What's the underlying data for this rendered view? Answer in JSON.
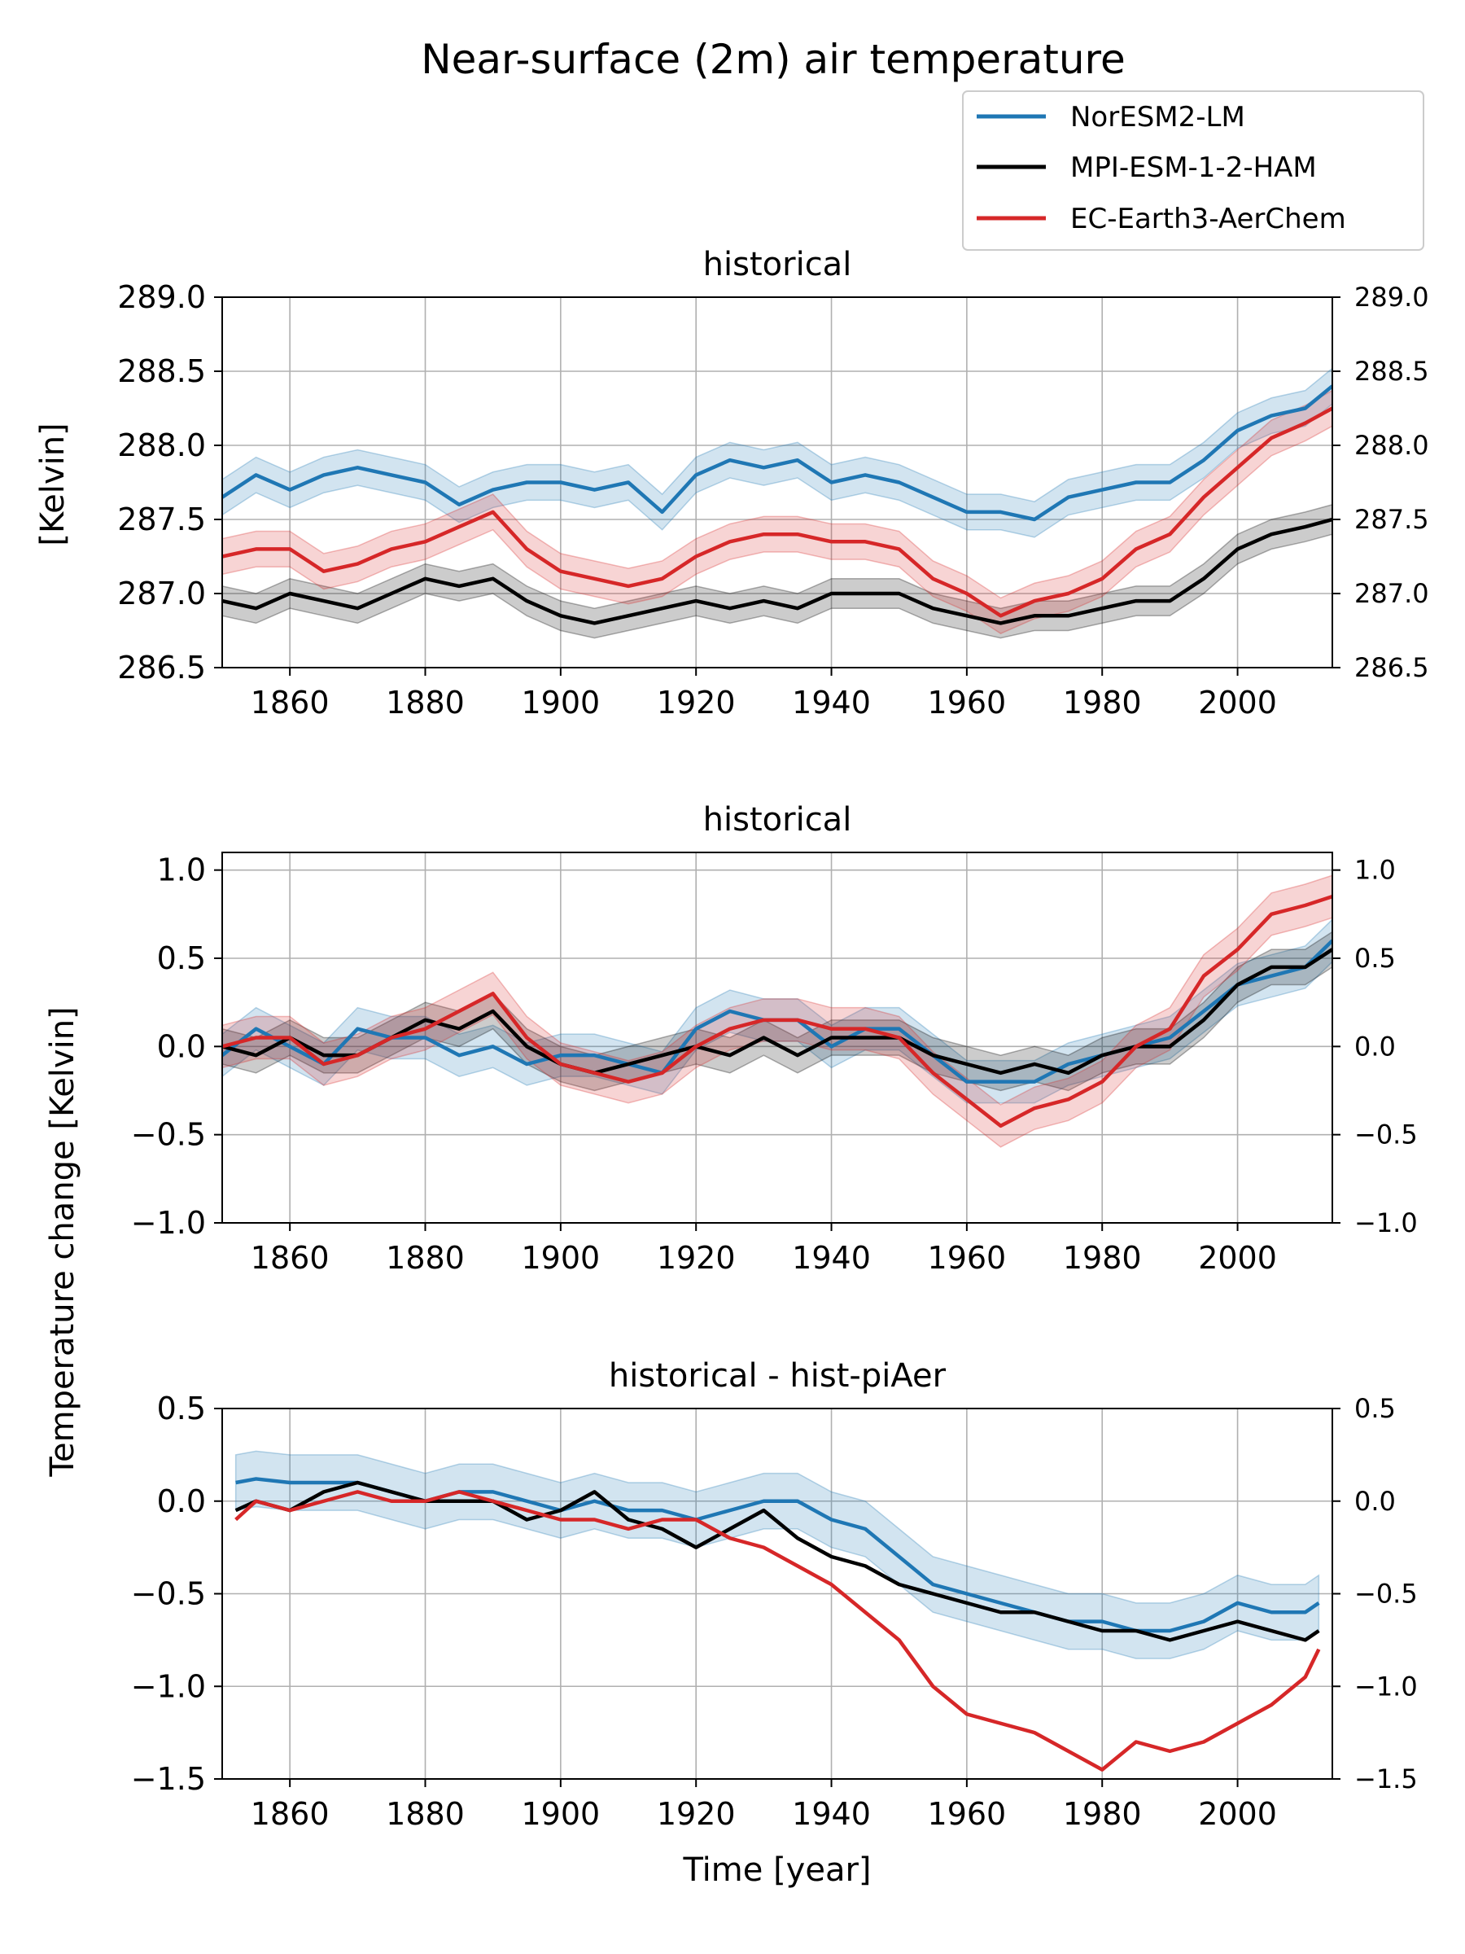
{
  "figure_title": "Near-surface (2m) air temperature",
  "colors": {
    "NorESM2-LM": "#1f77b4",
    "MPI-ESM-1-2-HAM": "#000000",
    "EC-Earth3-AerChem": "#d62728"
  },
  "chart_data": [
    {
      "type": "line",
      "title": "historical",
      "xlabel": "",
      "ylabel": "[Kelvin]",
      "xlim": [
        1850,
        2014
      ],
      "ylim": [
        286.5,
        289.0
      ],
      "xticks": [
        1860,
        1880,
        1900,
        1920,
        1940,
        1960,
        1980,
        2000
      ],
      "xtick_labels": [
        "1860",
        "1880",
        "1900",
        "1920",
        "1940",
        "1960",
        "1980",
        "2000"
      ],
      "yticks": [
        286.5,
        287.0,
        287.5,
        288.0,
        288.5,
        289.0
      ],
      "ytick_labels": [
        "286.5",
        "287.0",
        "287.5",
        "288.0",
        "288.5",
        "289.0"
      ],
      "grid": true,
      "legend": {
        "position": "above-right",
        "entries": [
          "NorESM2-LM",
          "MPI-ESM-1-2-HAM",
          "EC-Earth3-AerChem"
        ]
      },
      "series": [
        {
          "name": "NorESM2-LM",
          "x": [
            1850,
            1855,
            1860,
            1865,
            1870,
            1875,
            1880,
            1885,
            1890,
            1895,
            1900,
            1905,
            1910,
            1915,
            1920,
            1925,
            1930,
            1935,
            1940,
            1945,
            1950,
            1955,
            1960,
            1965,
            1970,
            1975,
            1980,
            1985,
            1990,
            1995,
            2000,
            2005,
            2010,
            2014
          ],
          "values": [
            287.65,
            287.8,
            287.7,
            287.8,
            287.85,
            287.8,
            287.75,
            287.6,
            287.7,
            287.75,
            287.75,
            287.7,
            287.75,
            287.55,
            287.8,
            287.9,
            287.85,
            287.9,
            287.75,
            287.8,
            287.75,
            287.65,
            287.55,
            287.55,
            287.5,
            287.65,
            287.7,
            287.75,
            287.75,
            287.9,
            288.1,
            288.2,
            288.25,
            288.4
          ],
          "band": 0.12
        },
        {
          "name": "MPI-ESM-1-2-HAM",
          "x": [
            1850,
            1855,
            1860,
            1865,
            1870,
            1875,
            1880,
            1885,
            1890,
            1895,
            1900,
            1905,
            1910,
            1915,
            1920,
            1925,
            1930,
            1935,
            1940,
            1945,
            1950,
            1955,
            1960,
            1965,
            1970,
            1975,
            1980,
            1985,
            1990,
            1995,
            2000,
            2005,
            2010,
            2014
          ],
          "values": [
            286.95,
            286.9,
            287.0,
            286.95,
            286.9,
            287.0,
            287.1,
            287.05,
            287.1,
            286.95,
            286.85,
            286.8,
            286.85,
            286.9,
            286.95,
            286.9,
            286.95,
            286.9,
            287.0,
            287.0,
            287.0,
            286.9,
            286.85,
            286.8,
            286.85,
            286.85,
            286.9,
            286.95,
            286.95,
            287.1,
            287.3,
            287.4,
            287.45,
            287.5
          ],
          "band": 0.1
        },
        {
          "name": "EC-Earth3-AerChem",
          "x": [
            1850,
            1855,
            1860,
            1865,
            1870,
            1875,
            1880,
            1885,
            1890,
            1895,
            1900,
            1905,
            1910,
            1915,
            1920,
            1925,
            1930,
            1935,
            1940,
            1945,
            1950,
            1955,
            1960,
            1965,
            1970,
            1975,
            1980,
            1985,
            1990,
            1995,
            2000,
            2005,
            2010,
            2014
          ],
          "values": [
            287.25,
            287.3,
            287.3,
            287.15,
            287.2,
            287.3,
            287.35,
            287.45,
            287.55,
            287.3,
            287.15,
            287.1,
            287.05,
            287.1,
            287.25,
            287.35,
            287.4,
            287.4,
            287.35,
            287.35,
            287.3,
            287.1,
            287.0,
            286.85,
            286.95,
            287.0,
            287.1,
            287.3,
            287.4,
            287.65,
            287.85,
            288.05,
            288.15,
            288.25
          ],
          "band": 0.12
        }
      ]
    },
    {
      "type": "line",
      "title": "historical",
      "xlabel": "",
      "ylabel": "Temperature change [Kelvin]",
      "xlim": [
        1850,
        2014
      ],
      "ylim": [
        -1.0,
        1.1
      ],
      "xticks": [
        1860,
        1880,
        1900,
        1920,
        1940,
        1960,
        1980,
        2000
      ],
      "xtick_labels": [
        "1860",
        "1880",
        "1900",
        "1920",
        "1940",
        "1960",
        "1980",
        "2000"
      ],
      "yticks": [
        -1.0,
        -0.5,
        0.0,
        0.5,
        1.0
      ],
      "ytick_labels": [
        "−1.0",
        "−0.5",
        "0.0",
        "0.5",
        "1.0"
      ],
      "grid": true,
      "series": [
        {
          "name": "NorESM2-LM",
          "x": [
            1850,
            1855,
            1860,
            1865,
            1870,
            1875,
            1880,
            1885,
            1890,
            1895,
            1900,
            1905,
            1910,
            1915,
            1920,
            1925,
            1930,
            1935,
            1940,
            1945,
            1950,
            1955,
            1960,
            1965,
            1970,
            1975,
            1980,
            1985,
            1990,
            1995,
            2000,
            2005,
            2010,
            2014
          ],
          "values": [
            -0.05,
            0.1,
            0.0,
            -0.1,
            0.1,
            0.05,
            0.05,
            -0.05,
            0.0,
            -0.1,
            -0.05,
            -0.05,
            -0.1,
            -0.15,
            0.1,
            0.2,
            0.15,
            0.15,
            0.0,
            0.1,
            0.1,
            -0.05,
            -0.2,
            -0.2,
            -0.2,
            -0.1,
            -0.05,
            0.0,
            0.05,
            0.2,
            0.35,
            0.4,
            0.45,
            0.6
          ],
          "band": 0.12
        },
        {
          "name": "MPI-ESM-1-2-HAM",
          "x": [
            1850,
            1855,
            1860,
            1865,
            1870,
            1875,
            1880,
            1885,
            1890,
            1895,
            1900,
            1905,
            1910,
            1915,
            1920,
            1925,
            1930,
            1935,
            1940,
            1945,
            1950,
            1955,
            1960,
            1965,
            1970,
            1975,
            1980,
            1985,
            1990,
            1995,
            2000,
            2005,
            2010,
            2014
          ],
          "values": [
            0.0,
            -0.05,
            0.05,
            -0.05,
            -0.05,
            0.05,
            0.15,
            0.1,
            0.2,
            0.0,
            -0.1,
            -0.15,
            -0.1,
            -0.05,
            0.0,
            -0.05,
            0.05,
            -0.05,
            0.05,
            0.05,
            0.05,
            -0.05,
            -0.1,
            -0.15,
            -0.1,
            -0.15,
            -0.05,
            0.0,
            0.0,
            0.15,
            0.35,
            0.45,
            0.45,
            0.55
          ],
          "band": 0.1
        },
        {
          "name": "EC-Earth3-AerChem",
          "x": [
            1850,
            1855,
            1860,
            1865,
            1870,
            1875,
            1880,
            1885,
            1890,
            1895,
            1900,
            1905,
            1910,
            1915,
            1920,
            1925,
            1930,
            1935,
            1940,
            1945,
            1950,
            1955,
            1960,
            1965,
            1970,
            1975,
            1980,
            1985,
            1990,
            1995,
            2000,
            2005,
            2010,
            2014
          ],
          "values": [
            0.0,
            0.05,
            0.05,
            -0.1,
            -0.05,
            0.05,
            0.1,
            0.2,
            0.3,
            0.05,
            -0.1,
            -0.15,
            -0.2,
            -0.15,
            0.0,
            0.1,
            0.15,
            0.15,
            0.1,
            0.1,
            0.05,
            -0.15,
            -0.3,
            -0.45,
            -0.35,
            -0.3,
            -0.2,
            0.0,
            0.1,
            0.4,
            0.55,
            0.75,
            0.8,
            0.85
          ],
          "band": 0.12
        }
      ]
    },
    {
      "type": "line",
      "title": "historical - hist-piAer",
      "xlabel": "Time [year]",
      "ylabel": "",
      "xlim": [
        1850,
        2014
      ],
      "ylim": [
        -1.5,
        0.5
      ],
      "xticks": [
        1860,
        1880,
        1900,
        1920,
        1940,
        1960,
        1980,
        2000
      ],
      "xtick_labels": [
        "1860",
        "1880",
        "1900",
        "1920",
        "1940",
        "1960",
        "1980",
        "2000"
      ],
      "yticks": [
        -1.5,
        -1.0,
        -0.5,
        0.0,
        0.5
      ],
      "ytick_labels": [
        "−1.5",
        "−1.0",
        "−0.5",
        "0.0",
        "0.5"
      ],
      "grid": true,
      "series": [
        {
          "name": "NorESM2-LM",
          "x": [
            1852,
            1855,
            1860,
            1865,
            1870,
            1875,
            1880,
            1885,
            1890,
            1895,
            1900,
            1905,
            1910,
            1915,
            1920,
            1925,
            1930,
            1935,
            1940,
            1945,
            1950,
            1955,
            1960,
            1965,
            1970,
            1975,
            1980,
            1985,
            1990,
            1995,
            2000,
            2005,
            2010,
            2012
          ],
          "values": [
            0.1,
            0.12,
            0.1,
            0.1,
            0.1,
            0.05,
            0.0,
            0.05,
            0.05,
            0.0,
            -0.05,
            0.0,
            -0.05,
            -0.05,
            -0.1,
            -0.05,
            0.0,
            0.0,
            -0.1,
            -0.15,
            -0.3,
            -0.45,
            -0.5,
            -0.55,
            -0.6,
            -0.65,
            -0.65,
            -0.7,
            -0.7,
            -0.65,
            -0.55,
            -0.6,
            -0.6,
            -0.55
          ],
          "band": 0.15
        },
        {
          "name": "MPI-ESM-1-2-HAM",
          "x": [
            1852,
            1855,
            1860,
            1865,
            1870,
            1875,
            1880,
            1885,
            1890,
            1895,
            1900,
            1905,
            1910,
            1915,
            1920,
            1925,
            1930,
            1935,
            1940,
            1945,
            1950,
            1955,
            1960,
            1965,
            1970,
            1975,
            1980,
            1985,
            1990,
            1995,
            2000,
            2005,
            2010,
            2012
          ],
          "values": [
            -0.05,
            0.0,
            -0.05,
            0.05,
            0.1,
            0.05,
            0.0,
            0.0,
            0.0,
            -0.1,
            -0.05,
            0.05,
            -0.1,
            -0.15,
            -0.25,
            -0.15,
            -0.05,
            -0.2,
            -0.3,
            -0.35,
            -0.45,
            -0.5,
            -0.55,
            -0.6,
            -0.6,
            -0.65,
            -0.7,
            -0.7,
            -0.75,
            -0.7,
            -0.65,
            -0.7,
            -0.75,
            -0.7
          ],
          "band": 0.0
        },
        {
          "name": "EC-Earth3-AerChem",
          "x": [
            1852,
            1855,
            1860,
            1865,
            1870,
            1875,
            1880,
            1885,
            1890,
            1895,
            1900,
            1905,
            1910,
            1915,
            1920,
            1925,
            1930,
            1935,
            1940,
            1945,
            1950,
            1955,
            1960,
            1965,
            1970,
            1975,
            1980,
            1985,
            1990,
            1995,
            2000,
            2005,
            2010,
            2012
          ],
          "values": [
            -0.1,
            0.0,
            -0.05,
            0.0,
            0.05,
            0.0,
            0.0,
            0.05,
            0.0,
            -0.05,
            -0.1,
            -0.1,
            -0.15,
            -0.1,
            -0.1,
            -0.2,
            -0.25,
            -0.35,
            -0.45,
            -0.6,
            -0.75,
            -1.0,
            -1.15,
            -1.2,
            -1.25,
            -1.35,
            -1.45,
            -1.3,
            -1.35,
            -1.3,
            -1.2,
            -1.1,
            -0.95,
            -0.8
          ],
          "band": 0.0
        }
      ]
    }
  ]
}
